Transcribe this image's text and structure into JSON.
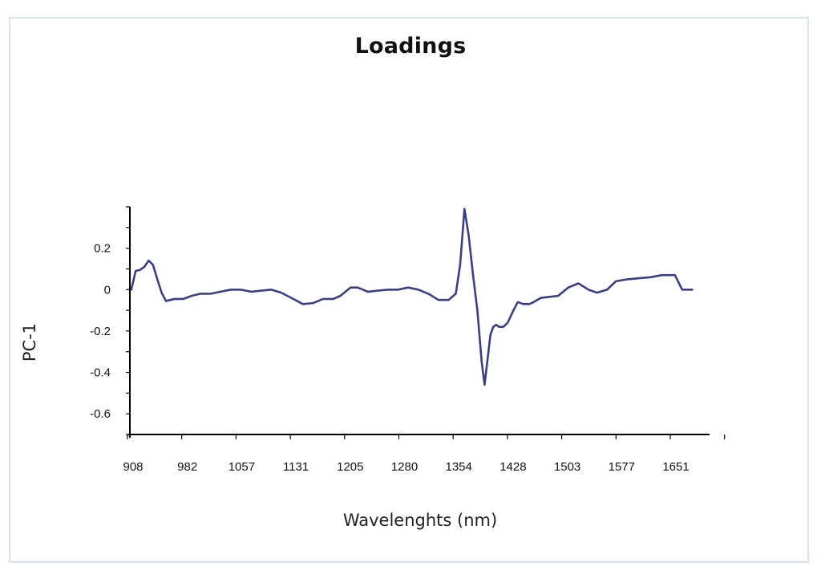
{
  "chart_data": {
    "type": "line",
    "title": "Loadings",
    "xlabel": "Wavelenghts (nm)",
    "ylabel": "PC-1",
    "x_tick_labels": [
      "908",
      "982",
      "1057",
      "1131",
      "1205",
      "1280",
      "1354",
      "1428",
      "1503",
      "1577",
      "1651"
    ],
    "y_tick_labels": [
      "0.2",
      "0",
      "-0.2",
      "-0.4",
      "-0.6"
    ],
    "y_ticks": [
      0.2,
      0,
      -0.2,
      -0.4,
      -0.6
    ],
    "xlim": [
      908,
      1712
    ],
    "ylim": [
      -0.7,
      0.4
    ],
    "grid": false,
    "line_color": "#3a3f85",
    "series": [
      {
        "x": [
          910,
          916,
          922,
          928,
          934,
          940,
          946,
          952,
          958,
          964,
          970,
          976,
          982,
          994,
          1006,
          1020,
          1034,
          1048,
          1062,
          1076,
          1090,
          1104,
          1118,
          1132,
          1148,
          1162,
          1176,
          1190,
          1200,
          1214,
          1224,
          1238,
          1252,
          1266,
          1280,
          1294,
          1308,
          1322,
          1336,
          1350,
          1360,
          1366,
          1372,
          1378,
          1384,
          1390,
          1396,
          1400,
          1404,
          1408,
          1412,
          1416,
          1420,
          1426,
          1432,
          1440,
          1446,
          1454,
          1462,
          1468,
          1478,
          1490,
          1502,
          1516,
          1530,
          1544,
          1556,
          1570,
          1582,
          1598,
          1614,
          1630,
          1646,
          1664,
          1674,
          1680,
          1688
        ],
        "values": [
          0.0,
          0.09,
          0.095,
          0.11,
          0.14,
          0.12,
          0.05,
          -0.015,
          -0.055,
          -0.05,
          -0.045,
          -0.045,
          -0.045,
          -0.03,
          -0.02,
          -0.02,
          -0.01,
          0.0,
          0.0,
          -0.01,
          -0.005,
          0.0,
          -0.015,
          -0.04,
          -0.07,
          -0.065,
          -0.045,
          -0.045,
          -0.03,
          0.01,
          0.01,
          -0.01,
          -0.005,
          0.0,
          0.0,
          0.01,
          0.0,
          -0.02,
          -0.05,
          -0.05,
          -0.02,
          0.12,
          0.39,
          0.26,
          0.07,
          -0.1,
          -0.35,
          -0.46,
          -0.34,
          -0.22,
          -0.18,
          -0.17,
          -0.18,
          -0.18,
          -0.16,
          -0.1,
          -0.06,
          -0.07,
          -0.07,
          -0.06,
          -0.04,
          -0.035,
          -0.03,
          0.01,
          0.03,
          0.0,
          -0.015,
          0.0,
          0.04,
          0.05,
          0.055,
          0.06,
          0.07,
          0.07,
          0.0,
          0.0,
          0.0
        ]
      }
    ]
  }
}
